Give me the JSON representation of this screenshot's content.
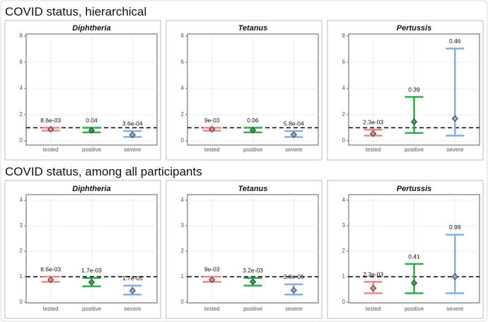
{
  "section_titles": [
    "COVID status, hierarchical",
    "COVID status, among all participants"
  ],
  "chart_data": [
    {
      "type": "errorbar",
      "title": "Diphtheria",
      "categories": [
        "tested",
        "positive",
        "severe"
      ],
      "colors": [
        "#e8898a",
        "#2fa84f",
        "#86aee0"
      ],
      "values": [
        0.88,
        0.8,
        0.45
      ],
      "lower": [
        0.78,
        0.65,
        0.3
      ],
      "upper": [
        1.0,
        1.0,
        0.75
      ],
      "annotations": [
        "8.6e-03",
        "0.04",
        "3.6e-04"
      ],
      "ylim": [
        0,
        8
      ],
      "yticks": [
        0,
        2,
        4,
        6,
        8
      ],
      "hline": 1,
      "grid": true
    },
    {
      "type": "errorbar",
      "title": "Tetanus",
      "categories": [
        "tested",
        "positive",
        "severe"
      ],
      "colors": [
        "#e8898a",
        "#2fa84f",
        "#86aee0"
      ],
      "values": [
        0.88,
        0.82,
        0.47
      ],
      "lower": [
        0.78,
        0.65,
        0.3
      ],
      "upper": [
        1.0,
        1.0,
        0.75
      ],
      "annotations": [
        "9e-03",
        "0.06",
        "5.8e-04"
      ],
      "ylim": [
        0,
        8
      ],
      "yticks": [
        0,
        2,
        4,
        6,
        8
      ],
      "hline": 1,
      "grid": true
    },
    {
      "type": "errorbar",
      "title": "Pertussis",
      "categories": [
        "tested",
        "positive",
        "severe"
      ],
      "colors": [
        "#e8898a",
        "#2fa84f",
        "#86aee0"
      ],
      "values": [
        0.55,
        1.45,
        1.7
      ],
      "lower": [
        0.4,
        0.6,
        0.4
      ],
      "upper": [
        0.85,
        3.35,
        7.05
      ],
      "annotations": [
        "2.3e-03",
        "0.39",
        "0.46"
      ],
      "ylim": [
        0,
        8
      ],
      "yticks": [
        0,
        2,
        4,
        6,
        8
      ],
      "hline": 1,
      "grid": true
    },
    {
      "type": "errorbar",
      "title": "Diphtheria",
      "categories": [
        "tested",
        "positive",
        "severe"
      ],
      "colors": [
        "#e8898a",
        "#2fa84f",
        "#86aee0"
      ],
      "values": [
        0.88,
        0.78,
        0.45
      ],
      "lower": [
        0.8,
        0.62,
        0.3
      ],
      "upper": [
        1.0,
        0.95,
        0.65
      ],
      "annotations": [
        "8.6e-03",
        "1.7e-03",
        "1.7e-05"
      ],
      "ylim": [
        0,
        4
      ],
      "yticks": [
        0,
        1,
        2,
        3,
        4
      ],
      "hline": 1,
      "grid": true
    },
    {
      "type": "errorbar",
      "title": "Tetanus",
      "categories": [
        "tested",
        "positive",
        "severe"
      ],
      "colors": [
        "#e8898a",
        "#2fa84f",
        "#86aee0"
      ],
      "values": [
        0.88,
        0.8,
        0.47
      ],
      "lower": [
        0.8,
        0.65,
        0.3
      ],
      "upper": [
        1.0,
        0.95,
        0.7
      ],
      "annotations": [
        "9e-03",
        "3.2e-03",
        "3.8e-05"
      ],
      "ylim": [
        0,
        4
      ],
      "yticks": [
        0,
        1,
        2,
        3,
        4
      ],
      "hline": 1,
      "grid": true
    },
    {
      "type": "errorbar",
      "title": "Pertussis",
      "categories": [
        "tested",
        "positive",
        "severe"
      ],
      "colors": [
        "#e8898a",
        "#2fa84f",
        "#86aee0"
      ],
      "values": [
        0.55,
        0.75,
        1.0
      ],
      "lower": [
        0.35,
        0.35,
        0.35
      ],
      "upper": [
        0.8,
        1.5,
        2.65
      ],
      "annotations": [
        "2.3e-03",
        "0.41",
        "0.99"
      ],
      "ylim": [
        0,
        4
      ],
      "yticks": [
        0,
        1,
        2,
        3,
        4
      ],
      "hline": 1,
      "grid": true
    }
  ]
}
